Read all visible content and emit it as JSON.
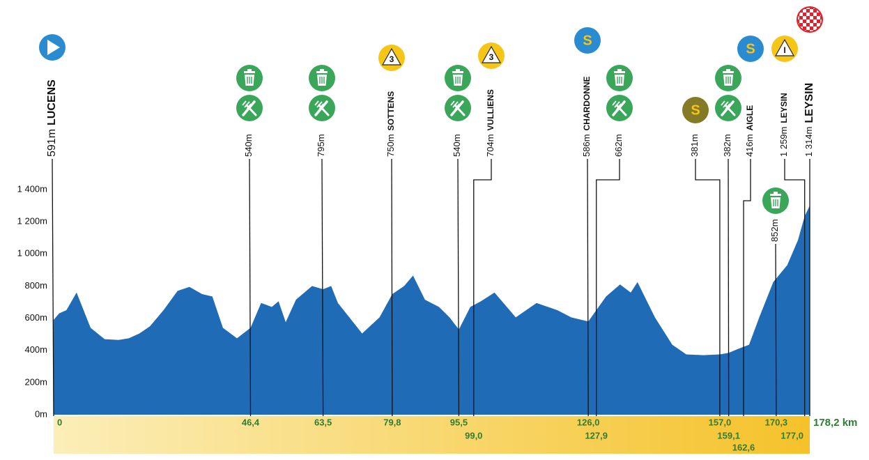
{
  "chart_data": {
    "type": "area",
    "color": "#1f6bb5",
    "x": [
      0,
      1.3,
      3,
      5.4,
      8.7,
      12,
      15.3,
      17.7,
      20.2,
      22.7,
      25.9,
      29.2,
      32,
      35,
      37.4,
      39.9,
      43.2,
      46.4,
      48.9,
      51.4,
      53,
      54.7,
      57.1,
      60.9,
      63.5,
      65.4,
      67,
      70.3,
      72.7,
      76.8,
      79.8,
      82.6,
      84.7,
      87.5,
      90.8,
      93.3,
      95.5,
      98.2,
      100.7,
      103.9,
      108.9,
      113.8,
      118.7,
      122,
      126,
      130.2,
      133.5,
      136,
      137.6,
      141.7,
      145.8,
      149.1,
      153.2,
      157,
      159.1,
      161.4,
      163.9,
      166.3,
      169.6,
      172.9,
      175.4,
      177,
      178.2
    ],
    "values": [
      590,
      630,
      650,
      760,
      540,
      470,
      465,
      475,
      505,
      550,
      650,
      770,
      795,
      750,
      735,
      540,
      475,
      540,
      695,
      670,
      705,
      575,
      715,
      800,
      780,
      800,
      695,
      585,
      505,
      605,
      750,
      800,
      865,
      715,
      670,
      605,
      530,
      670,
      705,
      760,
      605,
      695,
      650,
      605,
      580,
      735,
      810,
      760,
      825,
      605,
      435,
      375,
      370,
      375,
      385,
      410,
      435,
      605,
      825,
      930,
      1085,
      1235,
      1300
    ],
    "xlim": [
      0,
      178.2
    ],
    "ylim": [
      0,
      1400
    ],
    "yticks": [
      {
        "value": 0,
        "label": "0m"
      },
      {
        "value": 200,
        "label": "200m"
      },
      {
        "value": 400,
        "label": "400m"
      },
      {
        "value": 600,
        "label": "600m"
      },
      {
        "value": 800,
        "label": "800m"
      },
      {
        "value": 1000,
        "label": "1 000m"
      },
      {
        "value": 1200,
        "label": "1 200m"
      },
      {
        "value": 1400,
        "label": "1 400m"
      }
    ],
    "markers": [
      {
        "km": 0,
        "km_label": "0",
        "elevation": 591,
        "elevation_label": "591m",
        "name": "LUCENS",
        "icons": [
          {
            "type": "start",
            "color": "#2a8bd0"
          }
        ]
      },
      {
        "km": 46.4,
        "km_label": "46,4",
        "elevation": 540,
        "elevation_label": "540m",
        "icons": [
          {
            "type": "trash",
            "color": "#3aa65a"
          },
          {
            "type": "fork",
            "color": "#3aa65a"
          }
        ]
      },
      {
        "km": 63.5,
        "km_label": "63,5",
        "elevation": 795,
        "elevation_label": "795m",
        "icons": [
          {
            "type": "trash",
            "color": "#3aa65a"
          },
          {
            "type": "fork",
            "color": "#3aa65a"
          }
        ]
      },
      {
        "km": 79.8,
        "km_label": "79,8",
        "elevation": 750,
        "elevation_label": "750m",
        "name": "SOTTENS",
        "icons": [
          {
            "type": "climb",
            "text": "3",
            "color": "#f5c518"
          }
        ]
      },
      {
        "km": 95.5,
        "km_label": "95,5",
        "elevation": 540,
        "elevation_label": "540m",
        "icons": [
          {
            "type": "trash",
            "color": "#3aa65a"
          },
          {
            "type": "fork",
            "color": "#3aa65a"
          }
        ]
      },
      {
        "km": 99.0,
        "km_label": "99,0",
        "elevation": 704,
        "elevation_label": "704m",
        "name": "VULLIENS",
        "icons": [
          {
            "type": "climb",
            "text": "3",
            "color": "#f5c518"
          }
        ]
      },
      {
        "km": 126.0,
        "km_label": "126,0",
        "elevation": 586,
        "elevation_label": "586m",
        "name": "CHARDONNE",
        "icons": [
          {
            "type": "sprint",
            "text": "S",
            "color": "#2a8bd0"
          }
        ]
      },
      {
        "km": 127.9,
        "km_label": "127,9",
        "elevation": 662,
        "elevation_label": "662m",
        "icons": [
          {
            "type": "trash",
            "color": "#3aa65a"
          },
          {
            "type": "fork",
            "color": "#3aa65a"
          }
        ]
      },
      {
        "km": 157.0,
        "km_label": "157,0",
        "elevation": 381,
        "elevation_label": "381m",
        "icons": [
          {
            "type": "sprint",
            "text": "S",
            "color": "#857a25"
          }
        ]
      },
      {
        "km": 159.1,
        "km_label": "159,1",
        "elevation": 382,
        "elevation_label": "382m",
        "icons": [
          {
            "type": "trash",
            "color": "#3aa65a"
          },
          {
            "type": "fork",
            "color": "#3aa65a"
          }
        ]
      },
      {
        "km": 162.6,
        "km_label": "162,6",
        "elevation": 416,
        "elevation_label": "416m",
        "name": "AIGLE",
        "icons": [
          {
            "type": "sprint",
            "text": "S",
            "color": "#2a8bd0"
          }
        ]
      },
      {
        "km": 170.3,
        "km_label": "170,3",
        "elevation": 852,
        "elevation_label": "852m",
        "icons": [
          {
            "type": "trash",
            "color": "#3aa65a"
          }
        ]
      },
      {
        "km": 177.0,
        "km_label": "177,0",
        "elevation": 1259,
        "elevation_label": "1 259m",
        "name": "LEYSIN",
        "icons": [
          {
            "type": "climb",
            "text": "I",
            "color": "#f5c518"
          }
        ]
      },
      {
        "km": 178.2,
        "km_label": "178,2 km",
        "elevation": 1314,
        "elevation_label": "1 314m",
        "name": "LEYSIN",
        "icons": [
          {
            "type": "finish",
            "color": "#e0202a"
          }
        ]
      }
    ]
  }
}
